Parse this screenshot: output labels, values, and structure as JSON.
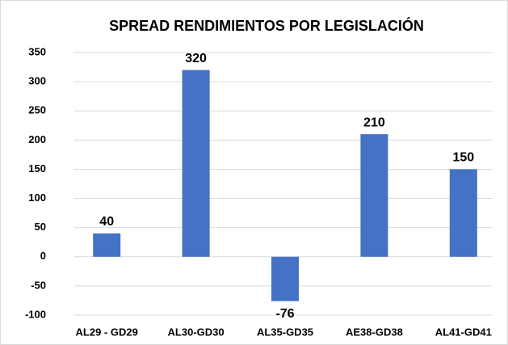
{
  "chart_data": {
    "type": "bar",
    "title": "SPREAD RENDIMIENTOS POR LEGISLACIÓN",
    "categories": [
      "AL29 - GD29",
      "AL30-GD30",
      "AL35-GD35",
      "AE38-GD38",
      "AL41-GD41"
    ],
    "values": [
      40,
      320,
      -76,
      210,
      150
    ],
    "color": "#4472c4",
    "ylim": [
      -100,
      350
    ],
    "yticks": [
      -100,
      -50,
      0,
      50,
      100,
      150,
      200,
      250,
      300,
      350
    ],
    "grid": true
  }
}
